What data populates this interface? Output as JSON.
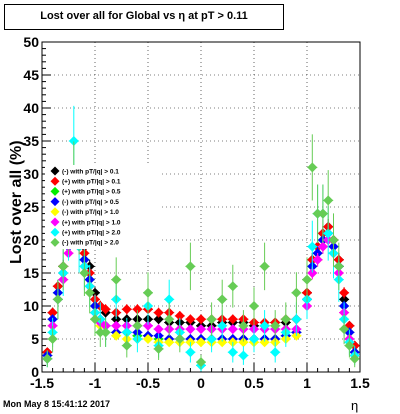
{
  "chart_data": {
    "type": "scatter",
    "title": "Lost over all for Global vs   η at pT > 0.11",
    "xlabel": "η",
    "ylabel": "Lost over all (%)",
    "xlim": [
      -1.5,
      1.5
    ],
    "ylim": [
      0,
      50
    ],
    "x_ticks": [
      "-1.5",
      "-1",
      "-0.5",
      "0",
      "0.5",
      "1",
      "1.5"
    ],
    "y_ticks": [
      "0",
      "5",
      "10",
      "15",
      "20",
      "25",
      "30",
      "35",
      "40",
      "45",
      "50"
    ],
    "grid": true,
    "legend_position": "left",
    "timestamp": "Mon May  8 15:41:12 2017",
    "series": [
      {
        "name": "(-) with pT/|q| > 0.1",
        "color": "#000000",
        "marker": "diamond",
        "x": [
          -1.45,
          -1.4,
          -1.35,
          -1.3,
          -1.25,
          -1.2,
          -1.15,
          -1.1,
          -1.05,
          -1.0,
          -0.95,
          -0.9,
          -0.8,
          -0.7,
          -0.6,
          -0.5,
          -0.4,
          -0.3,
          -0.2,
          -0.1,
          0.0,
          0.1,
          0.2,
          0.3,
          0.4,
          0.5,
          0.6,
          0.7,
          0.8,
          0.9,
          1.0,
          1.05,
          1.1,
          1.15,
          1.2,
          1.25,
          1.3,
          1.35,
          1.4,
          1.45
        ],
        "y": [
          3,
          9,
          13,
          16,
          20,
          22,
          21,
          19,
          16,
          12,
          10,
          9,
          8,
          8,
          8,
          8,
          8,
          7.5,
          7.5,
          7.5,
          7,
          7,
          7.5,
          7.5,
          7.5,
          7,
          7,
          7.5,
          7.5,
          8,
          12,
          17,
          19,
          21,
          22,
          20,
          17,
          11,
          7,
          4
        ]
      },
      {
        "name": "(+) with pT/|q| > 0.1",
        "color": "#ff0000",
        "marker": "diamond",
        "x": [
          -1.45,
          -1.4,
          -1.35,
          -1.3,
          -1.25,
          -1.2,
          -1.15,
          -1.1,
          -1.05,
          -1.0,
          -0.95,
          -0.9,
          -0.8,
          -0.7,
          -0.6,
          -0.5,
          -0.4,
          -0.3,
          -0.2,
          -0.1,
          0.0,
          0.1,
          0.2,
          0.3,
          0.4,
          0.5,
          0.6,
          0.7,
          0.8,
          0.9,
          1.0,
          1.05,
          1.1,
          1.15,
          1.2,
          1.25,
          1.3,
          1.35,
          1.4,
          1.45
        ],
        "y": [
          3,
          9,
          13,
          16,
          21,
          23,
          21,
          18,
          15,
          11,
          10,
          9.5,
          9,
          9.5,
          9.5,
          9.5,
          9,
          9,
          8.5,
          8,
          8,
          8,
          8,
          8,
          8,
          7.5,
          7.5,
          7.5,
          8,
          8,
          12,
          17,
          19,
          21,
          22,
          20,
          17,
          12,
          7,
          4
        ]
      },
      {
        "name": "(+) with pT/|q| > 0.5",
        "color": "#00ee00",
        "marker": "diamond",
        "x": [
          -1.45,
          -1.4,
          -1.35,
          -1.3,
          -1.25,
          -1.2,
          -1.15,
          -1.1,
          -1.05,
          -1.0,
          -0.95,
          -0.9,
          -0.8,
          -0.7,
          -0.6,
          -0.5,
          -0.4,
          -0.3,
          -0.2,
          -0.1,
          0.0,
          0.1,
          0.2,
          0.3,
          0.4,
          0.5,
          0.6,
          0.7,
          0.8,
          0.9,
          1.0,
          1.05,
          1.1,
          1.15,
          1.2,
          1.25,
          1.3,
          1.35,
          1.4,
          1.45
        ],
        "y": [
          2.5,
          8,
          12,
          15,
          20,
          22,
          20,
          17,
          14,
          10,
          8,
          7,
          6,
          6,
          5.5,
          5.5,
          5,
          5,
          5,
          5,
          5,
          5,
          5,
          5,
          5,
          5,
          5,
          5,
          5.5,
          6,
          11,
          16,
          18,
          20,
          21,
          19,
          16,
          10,
          6,
          3
        ]
      },
      {
        "name": "(-) with pT/|q| > 0.5",
        "color": "#0000ff",
        "marker": "diamond",
        "x": [
          -1.45,
          -1.4,
          -1.35,
          -1.3,
          -1.25,
          -1.2,
          -1.15,
          -1.1,
          -1.05,
          -1.0,
          -0.95,
          -0.9,
          -0.8,
          -0.7,
          -0.6,
          -0.5,
          -0.4,
          -0.3,
          -0.2,
          -0.1,
          0.0,
          0.1,
          0.2,
          0.3,
          0.4,
          0.5,
          0.6,
          0.7,
          0.8,
          0.9,
          1.0,
          1.05,
          1.1,
          1.15,
          1.2,
          1.25,
          1.3,
          1.35,
          1.4,
          1.45
        ],
        "y": [
          2.5,
          8,
          12,
          15,
          19,
          21,
          20,
          17,
          14,
          10,
          8,
          7,
          6,
          6,
          6,
          5.5,
          5.5,
          5,
          5,
          5,
          5,
          5,
          5,
          5,
          5,
          5,
          5,
          5,
          5.5,
          6,
          11,
          16,
          18,
          20,
          21,
          19,
          16,
          10,
          6,
          3
        ]
      },
      {
        "name": "(-) with pT/|q| > 1.0",
        "color": "#ffff00",
        "marker": "diamond",
        "x": [
          -1.45,
          -1.4,
          -1.35,
          -1.3,
          -1.25,
          -1.2,
          -1.15,
          -1.1,
          -1.05,
          -1.0,
          -0.95,
          -0.9,
          -0.8,
          -0.7,
          -0.6,
          -0.5,
          -0.4,
          -0.3,
          -0.2,
          -0.1,
          0.0,
          0.1,
          0.2,
          0.3,
          0.4,
          0.5,
          0.6,
          0.7,
          0.8,
          0.9,
          1.0,
          1.05,
          1.1,
          1.15,
          1.2,
          1.25,
          1.3,
          1.35,
          1.4,
          1.45
        ],
        "y": [
          2,
          7,
          11,
          14,
          18,
          21,
          19,
          16,
          13,
          9,
          7,
          6,
          5.5,
          5,
          5,
          5,
          4.5,
          4.5,
          4.5,
          4.5,
          4.5,
          4.5,
          4.5,
          4.5,
          4.5,
          4.5,
          4.5,
          4.5,
          5,
          5.5,
          10,
          15,
          17,
          19,
          20,
          18,
          15,
          9,
          5,
          2.5
        ]
      },
      {
        "name": "(+) with pT/|q| > 1.0",
        "color": "#ff00ff",
        "marker": "diamond",
        "x": [
          -1.45,
          -1.4,
          -1.35,
          -1.3,
          -1.25,
          -1.2,
          -1.15,
          -1.1,
          -1.05,
          -1.0,
          -0.95,
          -0.9,
          -0.8,
          -0.7,
          -0.6,
          -0.5,
          -0.4,
          -0.3,
          -0.2,
          -0.1,
          0.0,
          0.1,
          0.2,
          0.3,
          0.4,
          0.5,
          0.6,
          0.7,
          0.8,
          0.9,
          1.0,
          1.05,
          1.1,
          1.15,
          1.2,
          1.25,
          1.3,
          1.35,
          1.4,
          1.45
        ],
        "y": [
          2,
          7,
          11,
          14,
          18,
          21,
          19,
          16,
          13,
          9,
          7.5,
          7,
          7,
          7,
          7,
          7,
          6.5,
          6.5,
          6.5,
          6.5,
          6.5,
          6.5,
          6.5,
          6.5,
          6.5,
          6.5,
          6.5,
          6.5,
          6.5,
          6.5,
          10,
          15,
          17,
          19,
          20,
          18,
          15,
          9,
          5,
          2.5
        ]
      },
      {
        "name": "(+) with pT/|q| > 2.0",
        "color": "#00ffff",
        "marker": "diamond",
        "x": [
          -1.45,
          -1.4,
          -1.35,
          -1.3,
          -1.25,
          -1.2,
          -1.15,
          -1.1,
          -1.05,
          -1.0,
          -0.95,
          -0.9,
          -0.8,
          -0.7,
          -0.6,
          -0.5,
          -0.4,
          -0.3,
          -0.2,
          -0.1,
          0.0,
          0.1,
          0.2,
          0.3,
          0.4,
          0.5,
          0.6,
          0.7,
          0.8,
          0.9,
          1.0,
          1.05,
          1.1,
          1.15,
          1.2,
          1.25,
          1.3,
          1.35,
          1.4,
          1.45
        ],
        "y": [
          2,
          6,
          11,
          15,
          21,
          35,
          19,
          16,
          13,
          9,
          8,
          6,
          11,
          6,
          5,
          10,
          4,
          11,
          6,
          3,
          1,
          5,
          7,
          3,
          2.5,
          5,
          7,
          3,
          6,
          8,
          11,
          19,
          24,
          24,
          21,
          18,
          14,
          8,
          4.5,
          2.5
        ]
      },
      {
        "name": "(-) with pT/|q| > 2.0",
        "color": "#66cc55",
        "marker": "diamond",
        "x": [
          -1.45,
          -1.4,
          -1.35,
          -1.3,
          -1.25,
          -1.2,
          -1.15,
          -1.1,
          -1.05,
          -1.0,
          -0.95,
          -0.9,
          -0.8,
          -0.7,
          -0.6,
          -0.5,
          -0.4,
          -0.3,
          -0.2,
          -0.1,
          0.0,
          0.1,
          0.2,
          0.3,
          0.4,
          0.5,
          0.6,
          0.7,
          0.8,
          0.9,
          1.0,
          1.05,
          1.1,
          1.15,
          1.2,
          1.25,
          1.3,
          1.35,
          1.4,
          1.45
        ],
        "y": [
          2,
          5,
          11,
          16,
          22,
          30,
          22,
          15,
          12,
          8,
          6,
          6,
          14,
          4,
          7,
          12,
          3.5,
          8,
          5,
          16,
          1.5,
          8,
          11,
          13,
          7,
          10,
          16,
          7,
          8,
          12,
          14,
          31,
          24,
          24,
          26,
          20,
          16,
          6.5,
          4,
          2
        ]
      }
    ]
  }
}
